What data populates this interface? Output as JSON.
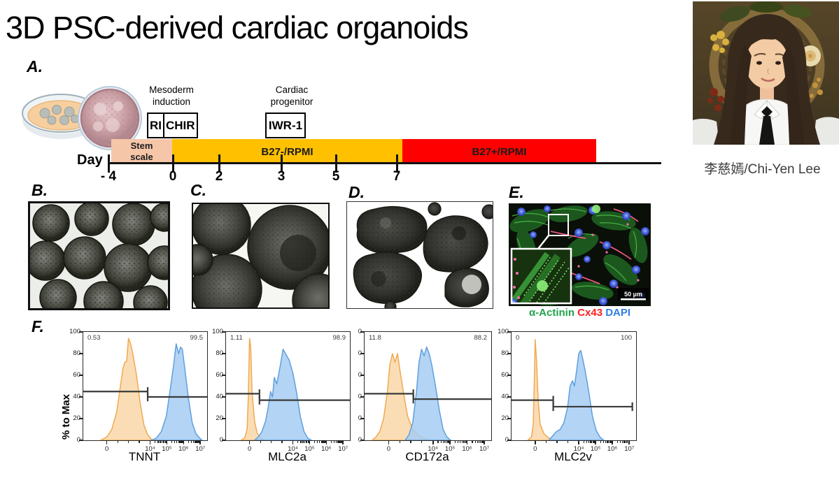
{
  "title": "3D PSC-derived cardiac organoids",
  "presenter": {
    "name": "李慈嫣/Chi-Yen Lee"
  },
  "panel_labels": {
    "a": "A.",
    "b": "B.",
    "c": "C.",
    "d": "D.",
    "e": "E.",
    "f": "F."
  },
  "timeline": {
    "day_label": "Day",
    "day_ticks": [
      "- 4",
      "0",
      "2",
      "3",
      "5",
      "7"
    ],
    "annotation1_line1": "Mesoderm",
    "annotation1_line2": "induction",
    "annotation2_line1": "Cardiac",
    "annotation2_line2": "progenitor",
    "box_ri": "RI",
    "box_chir": "CHIR",
    "box_iwr": "IWR-1",
    "phase1_line1": "Stem",
    "phase1_line2": "scale",
    "phase2": "B27-/RPMI",
    "phase3": "B27+/RPMI",
    "colors": {
      "phase1": "#F6C6A9",
      "phase2": "#FFC000",
      "phase3": "#FF0000"
    }
  },
  "panel_e": {
    "legend": [
      {
        "text": "α-Actinin",
        "color": "#22A14B"
      },
      {
        "text": "Cx43",
        "color": "#FF1F1F"
      },
      {
        "text": "DAPI",
        "color": "#2F7FE0"
      }
    ],
    "scale_bar": "50 µm"
  },
  "chart_data": [
    {
      "type": "area",
      "xlabel": "TNNT",
      "ylabel": "% to Max",
      "ylim": [
        0,
        100
      ],
      "grid": false,
      "legend_position": "none",
      "y_tick_labels": [
        "100",
        "80",
        "60",
        "40",
        "20",
        "0"
      ],
      "x_ticks": [
        {
          "label": "0",
          "pos": 0.19
        },
        {
          "label": "10⁴",
          "pos": 0.54
        },
        {
          "label": "10⁵",
          "pos": 0.675
        },
        {
          "label": "10⁶",
          "pos": 0.81
        },
        {
          "label": "10⁷",
          "pos": 0.945
        }
      ],
      "corner_left": "0.53",
      "corner_right": "99.5",
      "gates": [
        {
          "y": 45,
          "x1": 0.0,
          "x2": 0.52
        },
        {
          "y": 40,
          "x1": 0.52,
          "x2": 1.0
        }
      ],
      "series": [
        {
          "name": "negative-control",
          "fill": "#FAD7A8",
          "stroke": "#F0A952",
          "points": [
            [
              0.14,
              0
            ],
            [
              0.19,
              3
            ],
            [
              0.23,
              10
            ],
            [
              0.27,
              26
            ],
            [
              0.3,
              50
            ],
            [
              0.32,
              66
            ],
            [
              0.335,
              72
            ],
            [
              0.35,
              73
            ],
            [
              0.365,
              94
            ],
            [
              0.38,
              90
            ],
            [
              0.4,
              80
            ],
            [
              0.43,
              60
            ],
            [
              0.46,
              34
            ],
            [
              0.49,
              14
            ],
            [
              0.52,
              5
            ],
            [
              0.55,
              1
            ],
            [
              0.57,
              0
            ]
          ]
        },
        {
          "name": "stained-sample",
          "fill": "#A6CCF2",
          "stroke": "#5FA0DD",
          "points": [
            [
              0.55,
              0
            ],
            [
              0.59,
              2
            ],
            [
              0.63,
              8
            ],
            [
              0.67,
              22
            ],
            [
              0.7,
              45
            ],
            [
              0.73,
              70
            ],
            [
              0.75,
              89
            ],
            [
              0.77,
              80
            ],
            [
              0.785,
              86
            ],
            [
              0.8,
              84
            ],
            [
              0.82,
              66
            ],
            [
              0.85,
              38
            ],
            [
              0.88,
              16
            ],
            [
              0.91,
              6
            ],
            [
              0.94,
              2
            ],
            [
              0.96,
              0
            ]
          ]
        }
      ]
    },
    {
      "type": "area",
      "xlabel": "MLC2a",
      "ylabel": "",
      "ylim": [
        0,
        100
      ],
      "grid": false,
      "legend_position": "none",
      "y_tick_labels": [
        "100",
        "80",
        "60",
        "40",
        "20",
        "0"
      ],
      "x_ticks": [
        {
          "label": "0",
          "pos": 0.19
        },
        {
          "label": "10⁴",
          "pos": 0.54
        },
        {
          "label": "10⁵",
          "pos": 0.675
        },
        {
          "label": "10⁶",
          "pos": 0.81
        },
        {
          "label": "10⁷",
          "pos": 0.945
        }
      ],
      "corner_left": "1.11",
      "corner_right": "98.9",
      "gates": [
        {
          "y": 43,
          "x1": 0.0,
          "x2": 0.27
        },
        {
          "y": 37,
          "x1": 0.27,
          "x2": 1.0
        }
      ],
      "series": [
        {
          "name": "negative-control",
          "fill": "#FAD7A8",
          "stroke": "#F0A952",
          "points": [
            [
              0.12,
              0
            ],
            [
              0.15,
              2
            ],
            [
              0.17,
              10
            ],
            [
              0.18,
              40
            ],
            [
              0.19,
              94
            ],
            [
              0.2,
              85
            ],
            [
              0.21,
              45
            ],
            [
              0.23,
              18
            ],
            [
              0.25,
              7
            ],
            [
              0.28,
              2
            ],
            [
              0.31,
              0
            ]
          ]
        },
        {
          "name": "stained-sample",
          "fill": "#A6CCF2",
          "stroke": "#5FA0DD",
          "points": [
            [
              0.23,
              0
            ],
            [
              0.26,
              3
            ],
            [
              0.29,
              8
            ],
            [
              0.32,
              18
            ],
            [
              0.34,
              30
            ],
            [
              0.36,
              45
            ],
            [
              0.375,
              40
            ],
            [
              0.39,
              58
            ],
            [
              0.41,
              52
            ],
            [
              0.44,
              70
            ],
            [
              0.46,
              84
            ],
            [
              0.48,
              80
            ],
            [
              0.51,
              74
            ],
            [
              0.54,
              62
            ],
            [
              0.57,
              44
            ],
            [
              0.6,
              22
            ],
            [
              0.63,
              8
            ],
            [
              0.66,
              2
            ],
            [
              0.69,
              0
            ]
          ]
        }
      ]
    },
    {
      "type": "area",
      "xlabel": "CD172a",
      "ylabel": "",
      "ylim": [
        0,
        100
      ],
      "grid": false,
      "legend_position": "none",
      "y_tick_labels": [
        "0",
        "0",
        "0",
        "0",
        "0",
        "0"
      ],
      "x_ticks": [
        {
          "label": "0",
          "pos": 0.19
        },
        {
          "label": "10⁴",
          "pos": 0.54
        },
        {
          "label": "10⁵",
          "pos": 0.675
        },
        {
          "label": "10⁶",
          "pos": 0.81
        },
        {
          "label": "10⁷",
          "pos": 0.945
        }
      ],
      "corner_left": "11.8",
      "corner_right": "88.2",
      "gates": [
        {
          "y": 43,
          "x1": 0.0,
          "x2": 0.385
        },
        {
          "y": 38,
          "x1": 0.385,
          "x2": 1.0
        }
      ],
      "series": [
        {
          "name": "negative-control",
          "fill": "#FAD7A8",
          "stroke": "#F0A952",
          "points": [
            [
              0.06,
              0
            ],
            [
              0.09,
              3
            ],
            [
              0.12,
              8
            ],
            [
              0.15,
              20
            ],
            [
              0.18,
              45
            ],
            [
              0.2,
              70
            ],
            [
              0.22,
              80
            ],
            [
              0.24,
              72
            ],
            [
              0.26,
              80
            ],
            [
              0.28,
              64
            ],
            [
              0.31,
              42
            ],
            [
              0.34,
              22
            ],
            [
              0.38,
              10
            ],
            [
              0.43,
              4
            ],
            [
              0.48,
              1
            ],
            [
              0.52,
              0
            ]
          ]
        },
        {
          "name": "stained-sample",
          "fill": "#A6CCF2",
          "stroke": "#5FA0DD",
          "points": [
            [
              0.32,
              0
            ],
            [
              0.35,
              5
            ],
            [
              0.38,
              16
            ],
            [
              0.41,
              45
            ],
            [
              0.43,
              72
            ],
            [
              0.45,
              84
            ],
            [
              0.47,
              78
            ],
            [
              0.49,
              86
            ],
            [
              0.51,
              80
            ],
            [
              0.53,
              70
            ],
            [
              0.56,
              50
            ],
            [
              0.59,
              28
            ],
            [
              0.62,
              10
            ],
            [
              0.65,
              3
            ],
            [
              0.68,
              0
            ]
          ]
        }
      ]
    },
    {
      "type": "area",
      "xlabel": "MLC2v",
      "ylabel": "",
      "ylim": [
        0,
        100
      ],
      "grid": false,
      "legend_position": "none",
      "y_tick_labels": [
        "100",
        "80",
        "60",
        "40",
        "20",
        "0"
      ],
      "x_ticks": [
        {
          "label": "0",
          "pos": 0.19
        },
        {
          "label": "10⁴",
          "pos": 0.54
        },
        {
          "label": "10⁵",
          "pos": 0.675
        },
        {
          "label": "10⁶",
          "pos": 0.81
        },
        {
          "label": "10⁷",
          "pos": 0.945
        }
      ],
      "corner_left": "0",
      "corner_right": "100",
      "gates": [
        {
          "y": 37,
          "x1": 0.0,
          "x2": 0.335
        },
        {
          "y": 31,
          "x1": 0.335,
          "x2": 0.97
        }
      ],
      "series": [
        {
          "name": "negative-control",
          "fill": "#FAD7A8",
          "stroke": "#F0A952",
          "points": [
            [
              0.13,
              0
            ],
            [
              0.16,
              3
            ],
            [
              0.175,
              15
            ],
            [
              0.19,
              93
            ],
            [
              0.2,
              75
            ],
            [
              0.215,
              35
            ],
            [
              0.23,
              15
            ],
            [
              0.26,
              6
            ],
            [
              0.3,
              2
            ],
            [
              0.34,
              0
            ]
          ]
        },
        {
          "name": "stained-sample",
          "fill": "#A6CCF2",
          "stroke": "#5FA0DD",
          "points": [
            [
              0.3,
              0
            ],
            [
              0.33,
              4
            ],
            [
              0.36,
              8
            ],
            [
              0.39,
              10
            ],
            [
              0.42,
              16
            ],
            [
              0.45,
              30
            ],
            [
              0.47,
              50
            ],
            [
              0.49,
              55
            ],
            [
              0.505,
              50
            ],
            [
              0.52,
              62
            ],
            [
              0.54,
              80
            ],
            [
              0.555,
              83
            ],
            [
              0.57,
              76
            ],
            [
              0.59,
              65
            ],
            [
              0.62,
              45
            ],
            [
              0.65,
              22
            ],
            [
              0.68,
              9
            ],
            [
              0.71,
              3
            ],
            [
              0.74,
              0
            ]
          ]
        }
      ]
    }
  ]
}
